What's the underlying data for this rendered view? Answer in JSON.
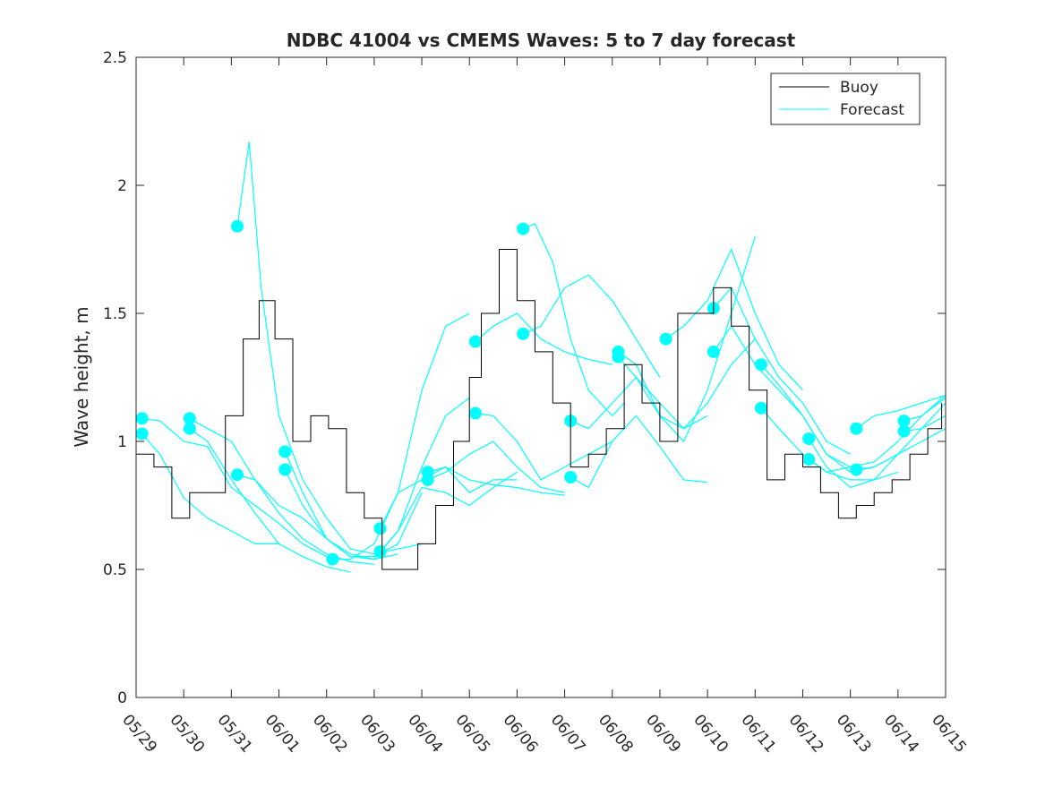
{
  "chart_data": {
    "type": "line",
    "title": "NDBC 41004 vs CMEMS Waves: 5 to 7 day forecast",
    "xlabel": "",
    "ylabel": "Wave height, m",
    "ylim": [
      0,
      2.5
    ],
    "xlim": [
      "05/29",
      "06/15"
    ],
    "x_ticks": [
      "05/29",
      "05/30",
      "05/31",
      "06/01",
      "06/02",
      "06/03",
      "06/04",
      "06/05",
      "06/06",
      "06/07",
      "06/08",
      "06/09",
      "06/10",
      "06/11",
      "06/12",
      "06/13",
      "06/14",
      "06/15"
    ],
    "y_ticks": [
      "0",
      "0.5",
      "1",
      "1.5",
      "2",
      "2.5"
    ],
    "grid": false,
    "legend": {
      "position": "top-right",
      "entries": [
        "Buoy",
        "Forecast"
      ]
    },
    "colors": {
      "buoy": "#000000",
      "forecast": "#00ffff"
    },
    "buoy": {
      "name": "Buoy",
      "x": [
        "05/29 00:00",
        "05/29 09:00",
        "05/29 18:00",
        "05/30 03:00",
        "05/30 12:00",
        "05/30 21:00",
        "05/31 06:00",
        "05/31 14:00",
        "05/31 22:00",
        "06/01 07:00",
        "06/01 16:00",
        "06/02 01:00",
        "06/02 10:00",
        "06/02 19:00",
        "06/03 04:00",
        "06/03 13:00",
        "06/03 22:00",
        "06/04 07:00",
        "06/04 16:00",
        "06/05 00:00",
        "06/05 06:00",
        "06/05 15:00",
        "06/06 00:00",
        "06/06 09:00",
        "06/06 18:00",
        "06/07 03:00",
        "06/07 12:00",
        "06/07 21:00",
        "06/08 06:00",
        "06/08 15:00",
        "06/09 00:00",
        "06/09 09:00",
        "06/09 18:00",
        "06/10 03:00",
        "06/10 12:00",
        "06/10 21:00",
        "06/11 06:00",
        "06/11 15:00",
        "06/12 00:00",
        "06/12 09:00",
        "06/12 18:00",
        "06/13 03:00",
        "06/13 12:00",
        "06/13 21:00",
        "06/14 06:00",
        "06/14 15:00",
        "06/14 22:00"
      ],
      "y": [
        0.95,
        0.9,
        0.7,
        0.8,
        0.8,
        1.1,
        1.4,
        1.55,
        1.4,
        1.0,
        1.1,
        1.05,
        0.8,
        0.7,
        0.5,
        0.5,
        0.6,
        0.75,
        1.0,
        1.25,
        1.5,
        1.75,
        1.55,
        1.35,
        1.15,
        0.9,
        0.95,
        1.05,
        1.3,
        1.15,
        1.0,
        1.5,
        1.5,
        1.6,
        1.45,
        1.2,
        0.85,
        0.95,
        0.9,
        0.8,
        0.7,
        0.75,
        0.8,
        0.85,
        0.95,
        1.05,
        1.15
      ]
    },
    "forecast": {
      "name": "Forecast",
      "series": [
        {
          "x": [
            "05/29 03:00",
            "05/29 12:00",
            "05/30 00:00",
            "05/30 12:00",
            "05/31 00:00",
            "05/31 12:00",
            "06/01 00:00"
          ],
          "y": [
            1.03,
            0.95,
            0.78,
            0.7,
            0.65,
            0.6,
            0.6
          ]
        },
        {
          "x": [
            "05/29 03:00",
            "05/29 12:00",
            "05/30 00:00",
            "05/30 12:00",
            "05/31 00:00",
            "05/31 12:00",
            "06/01 00:00",
            "06/01 12:00",
            "06/02 00:00"
          ],
          "y": [
            1.09,
            1.08,
            1.0,
            0.98,
            0.82,
            0.75,
            0.68,
            0.6,
            0.55
          ]
        },
        {
          "x": [
            "05/30 03:00",
            "05/30 12:00",
            "05/31 00:00",
            "05/31 12:00",
            "06/01 00:00",
            "06/01 12:00",
            "06/02 00:00",
            "06/02 12:00"
          ],
          "y": [
            1.05,
            1.0,
            0.85,
            0.72,
            0.6,
            0.55,
            0.51,
            0.49
          ]
        },
        {
          "x": [
            "05/30 03:00",
            "05/30 12:00",
            "05/31 00:00",
            "05/31 12:00",
            "06/01 00:00",
            "06/01 12:00",
            "06/02 00:00",
            "06/02 12:00",
            "06/03 00:00"
          ],
          "y": [
            1.09,
            1.05,
            1.0,
            0.85,
            0.72,
            0.62,
            0.56,
            0.53,
            0.52
          ]
        },
        {
          "x": [
            "05/31 03:00",
            "05/31 09:00",
            "05/31 15:00",
            "06/01 00:00",
            "06/01 12:00",
            "06/02 00:00",
            "06/02 12:00",
            "06/03 00:00",
            "06/03 12:00",
            "06/04 00:00"
          ],
          "y": [
            1.84,
            2.17,
            1.6,
            1.1,
            0.85,
            0.7,
            0.58,
            0.56,
            0.58,
            0.6
          ]
        },
        {
          "x": [
            "05/31 03:00",
            "05/31 12:00",
            "06/01 00:00",
            "06/01 12:00",
            "06/02 00:00",
            "06/02 12:00",
            "06/03 00:00",
            "06/03 12:00"
          ],
          "y": [
            0.87,
            0.85,
            0.75,
            0.7,
            0.62,
            0.56,
            0.54,
            0.56
          ]
        },
        {
          "x": [
            "06/01 03:00",
            "06/01 12:00",
            "06/02 00:00",
            "06/02 12:00",
            "06/03 00:00",
            "06/03 12:00",
            "06/04 00:00"
          ],
          "y": [
            0.96,
            0.8,
            0.62,
            0.55,
            0.55,
            0.6,
            0.8
          ]
        },
        {
          "x": [
            "06/01 03:00",
            "06/01 12:00",
            "06/02 00:00",
            "06/02 12:00",
            "06/03 00:00",
            "06/03 12:00",
            "06/04 00:00",
            "06/04 12:00",
            "06/05 00:00"
          ],
          "y": [
            0.89,
            0.75,
            0.62,
            0.55,
            0.54,
            0.65,
            0.9,
            1.1,
            1.17
          ]
        },
        {
          "x": [
            "06/02 03:00",
            "06/02 12:00",
            "06/03 00:00",
            "06/03 12:00",
            "06/04 00:00",
            "06/04 12:00",
            "06/05 00:00"
          ],
          "y": [
            0.54,
            0.54,
            0.6,
            0.8,
            1.2,
            1.45,
            1.5
          ]
        },
        {
          "x": [
            "06/03 03:00",
            "06/03 12:00",
            "06/04 00:00",
            "06/04 12:00",
            "06/05 00:00",
            "06/05 12:00",
            "06/06 00:00"
          ],
          "y": [
            0.66,
            0.8,
            0.85,
            0.9,
            0.8,
            0.85,
            0.85
          ]
        },
        {
          "x": [
            "06/03 03:00",
            "06/03 12:00",
            "06/04 00:00",
            "06/04 12:00",
            "06/05 00:00",
            "06/05 12:00",
            "06/06 00:00"
          ],
          "y": [
            0.57,
            0.65,
            0.82,
            0.8,
            0.75,
            0.82,
            0.88
          ]
        },
        {
          "x": [
            "06/04 03:00",
            "06/04 12:00",
            "06/05 00:00",
            "06/05 12:00",
            "06/06 00:00",
            "06/06 12:00",
            "06/07 00:00"
          ],
          "y": [
            0.88,
            0.9,
            0.85,
            0.83,
            0.82,
            0.8,
            0.79
          ]
        },
        {
          "x": [
            "06/04 03:00",
            "06/04 12:00",
            "06/05 00:00",
            "06/05 12:00",
            "06/06 00:00",
            "06/06 12:00",
            "06/07 00:00"
          ],
          "y": [
            0.85,
            0.88,
            0.95,
            1.0,
            0.9,
            0.82,
            0.8
          ]
        },
        {
          "x": [
            "06/05 03:00",
            "06/05 12:00",
            "06/06 00:00",
            "06/06 12:00",
            "06/07 00:00",
            "06/07 12:00",
            "06/08 00:00"
          ],
          "y": [
            1.39,
            1.45,
            1.5,
            1.4,
            1.35,
            1.32,
            1.3
          ]
        },
        {
          "x": [
            "06/05 03:00",
            "06/05 12:00",
            "06/06 00:00",
            "06/06 12:00",
            "06/07 00:00",
            "06/07 12:00",
            "06/08 00:00"
          ],
          "y": [
            1.11,
            1.1,
            1.0,
            0.85,
            0.9,
            0.95,
            1.0
          ]
        },
        {
          "x": [
            "06/06 03:00",
            "06/06 09:00",
            "06/06 18:00",
            "06/07 03:00",
            "06/07 12:00",
            "06/08 00:00",
            "06/08 06:00"
          ],
          "y": [
            1.83,
            1.85,
            1.7,
            1.4,
            1.2,
            1.1,
            1.15
          ]
        },
        {
          "x": [
            "06/06 03:00",
            "06/06 12:00",
            "06/07 00:00",
            "06/07 12:00",
            "06/08 00:00",
            "06/08 12:00",
            "06/09 00:00"
          ],
          "y": [
            1.42,
            1.45,
            1.6,
            1.65,
            1.55,
            1.4,
            1.25
          ]
        },
        {
          "x": [
            "06/07 03:00",
            "06/07 12:00",
            "06/08 00:00",
            "06/08 12:00",
            "06/09 00:00",
            "06/09 12:00",
            "06/10 00:00"
          ],
          "y": [
            1.08,
            1.05,
            1.15,
            1.25,
            1.15,
            1.05,
            1.1
          ]
        },
        {
          "x": [
            "06/07 03:00",
            "06/07 12:00",
            "06/08 00:00",
            "06/08 12:00",
            "06/09 00:00",
            "06/09 12:00",
            "06/10 00:00"
          ],
          "y": [
            0.86,
            0.82,
            1.0,
            1.1,
            0.98,
            0.85,
            0.84
          ]
        },
        {
          "x": [
            "06/08 03:00",
            "06/08 12:00",
            "06/09 00:00",
            "06/09 12:00",
            "06/10 00:00",
            "06/10 12:00",
            "06/11 00:00"
          ],
          "y": [
            1.35,
            1.3,
            1.1,
            1.0,
            1.2,
            1.5,
            1.8
          ]
        },
        {
          "x": [
            "06/08 03:00",
            "06/08 12:00",
            "06/09 00:00",
            "06/09 12:00",
            "06/10 00:00",
            "06/10 12:00",
            "06/11 00:00"
          ],
          "y": [
            1.33,
            1.25,
            1.1,
            1.05,
            1.15,
            1.3,
            1.4
          ]
        },
        {
          "x": [
            "06/09 03:00",
            "06/09 12:00",
            "06/10 00:00",
            "06/10 12:00",
            "06/11 00:00",
            "06/11 12:00",
            "06/12 00:00"
          ],
          "y": [
            1.4,
            1.45,
            1.55,
            1.75,
            1.5,
            1.3,
            1.2
          ]
        },
        {
          "x": [
            "06/10 03:00",
            "06/10 12:00",
            "06/11 00:00",
            "06/11 12:00",
            "06/12 00:00",
            "06/12 12:00",
            "06/13 00:00"
          ],
          "y": [
            1.52,
            1.6,
            1.4,
            1.25,
            1.15,
            1.0,
            0.95
          ]
        },
        {
          "x": [
            "06/10 03:00",
            "06/10 12:00",
            "06/11 00:00",
            "06/11 12:00",
            "06/12 00:00",
            "06/12 12:00",
            "06/13 00:00"
          ],
          "y": [
            1.35,
            1.45,
            1.3,
            1.2,
            1.1,
            0.95,
            0.9
          ]
        },
        {
          "x": [
            "06/11 03:00",
            "06/11 12:00",
            "06/12 00:00",
            "06/12 12:00",
            "06/13 00:00",
            "06/13 12:00",
            "06/14 00:00"
          ],
          "y": [
            1.3,
            1.22,
            1.1,
            0.95,
            0.88,
            0.9,
            0.95
          ]
        },
        {
          "x": [
            "06/11 03:00",
            "06/11 12:00",
            "06/12 00:00",
            "06/12 12:00",
            "06/13 00:00",
            "06/13 12:00",
            "06/14 00:00"
          ],
          "y": [
            1.13,
            1.05,
            0.95,
            0.88,
            0.85,
            0.85,
            0.88
          ]
        },
        {
          "x": [
            "06/12 03:00",
            "06/12 12:00",
            "06/13 00:00",
            "06/13 12:00",
            "06/14 00:00",
            "06/14 12:00",
            "06/15 00:00"
          ],
          "y": [
            1.01,
            0.9,
            0.82,
            0.85,
            0.95,
            1.05,
            1.15
          ]
        },
        {
          "x": [
            "06/12 03:00",
            "06/12 12:00",
            "06/13 00:00",
            "06/13 12:00",
            "06/14 00:00",
            "06/14 12:00",
            "06/15 00:00"
          ],
          "y": [
            0.93,
            0.88,
            0.9,
            0.92,
            1.0,
            1.1,
            1.17
          ]
        },
        {
          "x": [
            "06/13 03:00",
            "06/13 12:00",
            "06/14 00:00",
            "06/14 12:00",
            "06/15 00:00"
          ],
          "y": [
            1.05,
            1.1,
            1.12,
            1.15,
            1.18
          ]
        },
        {
          "x": [
            "06/13 03:00",
            "06/13 12:00",
            "06/14 00:00",
            "06/14 12:00",
            "06/15 00:00"
          ],
          "y": [
            0.89,
            0.9,
            0.95,
            1.0,
            1.05
          ]
        },
        {
          "x": [
            "06/14 03:00",
            "06/14 12:00",
            "06/15 00:00"
          ],
          "y": [
            1.08,
            1.1,
            1.18
          ]
        },
        {
          "x": [
            "06/14 03:00",
            "06/14 12:00",
            "06/15 00:00"
          ],
          "y": [
            1.04,
            1.05,
            1.1
          ]
        }
      ]
    }
  }
}
